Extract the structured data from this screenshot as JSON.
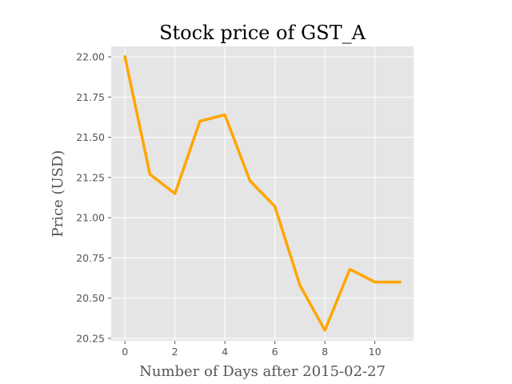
{
  "chart_data": {
    "type": "line",
    "title": "Stock price of GST_A",
    "xlabel": "Number of Days after 2015-02-27",
    "ylabel": "Price (USD)",
    "x": [
      0,
      1,
      2,
      3,
      4,
      5,
      6,
      7,
      8,
      9,
      10,
      11
    ],
    "series": [
      {
        "values": [
          22.0,
          21.27,
          21.15,
          21.6,
          21.64,
          21.23,
          21.07,
          20.58,
          20.3,
          20.68,
          20.6,
          20.6
        ],
        "color": "#ffa500"
      }
    ],
    "xlim": [
      -0.55,
      11.55
    ],
    "ylim": [
      20.235,
      22.065
    ],
    "x_ticks": [
      0,
      2,
      4,
      6,
      8,
      10
    ],
    "x_tick_labels": [
      "0",
      "2",
      "4",
      "6",
      "8",
      "10"
    ],
    "y_ticks": [
      20.25,
      20.5,
      20.75,
      21.0,
      21.25,
      21.5,
      21.75,
      22.0
    ],
    "y_tick_labels": [
      "20.25",
      "20.50",
      "20.75",
      "21.00",
      "21.25",
      "21.50",
      "21.75",
      "22.00"
    ],
    "grid": true,
    "background_color": "#e5e5e5"
  }
}
